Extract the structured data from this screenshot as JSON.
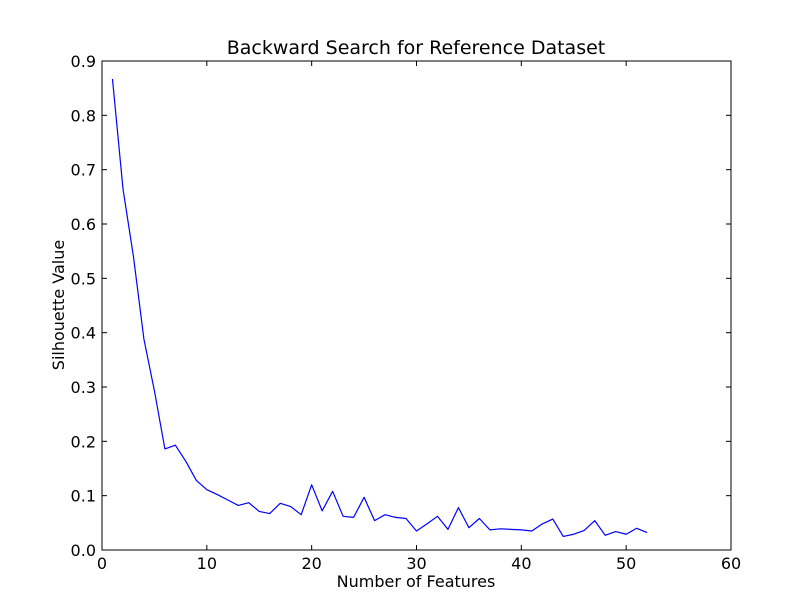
{
  "chart_data": {
    "type": "line",
    "title": "Backward Search for Reference Dataset",
    "xlabel": "Number of Features",
    "ylabel": "Silhouette Value",
    "xlim": [
      0,
      60
    ],
    "ylim": [
      0.0,
      0.9
    ],
    "xticks": [
      "0",
      "10",
      "20",
      "30",
      "40",
      "50",
      "60"
    ],
    "yticks": [
      "0.0",
      "0.1",
      "0.2",
      "0.3",
      "0.4",
      "0.5",
      "0.6",
      "0.7",
      "0.8",
      "0.9"
    ],
    "grid": false,
    "series": [
      {
        "color": "#0000ff",
        "x": [
          1,
          2,
          3,
          4,
          5,
          6,
          7,
          8,
          9,
          10,
          11,
          12,
          13,
          14,
          15,
          16,
          17,
          18,
          19,
          20,
          21,
          22,
          23,
          24,
          25,
          26,
          27,
          28,
          29,
          30,
          31,
          32,
          33,
          34,
          35,
          36,
          37,
          38,
          39,
          40,
          41,
          42,
          43,
          44,
          45,
          46,
          47,
          48,
          49,
          50,
          51,
          52
        ],
        "values": [
          0.867,
          0.665,
          0.54,
          0.388,
          0.293,
          0.186,
          0.193,
          0.163,
          0.128,
          0.111,
          0.102,
          0.092,
          0.082,
          0.087,
          0.071,
          0.067,
          0.086,
          0.08,
          0.065,
          0.12,
          0.072,
          0.108,
          0.062,
          0.06,
          0.097,
          0.054,
          0.065,
          0.06,
          0.058,
          0.035,
          0.048,
          0.062,
          0.038,
          0.078,
          0.041,
          0.058,
          0.037,
          0.039,
          0.038,
          0.037,
          0.035,
          0.048,
          0.057,
          0.025,
          0.029,
          0.036,
          0.054,
          0.027,
          0.034,
          0.029,
          0.04,
          0.032
        ]
      }
    ]
  }
}
